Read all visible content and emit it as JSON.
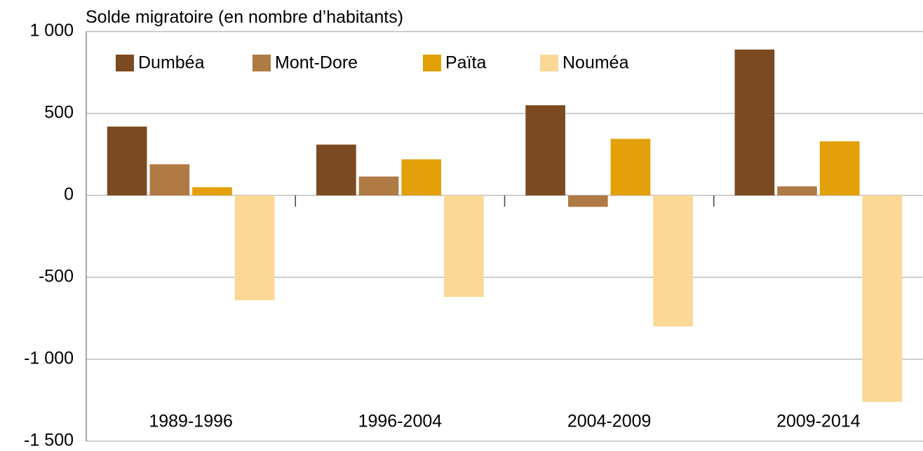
{
  "chart_data": {
    "type": "bar",
    "title": "Solde migratoire (en nombre d’habitants)",
    "categories": [
      "1989-1996",
      "1996-2004",
      "2004-2009",
      "2009-2014"
    ],
    "series": [
      {
        "name": "Dumbéa",
        "color": "#7b4a21",
        "values": [
          420,
          310,
          550,
          890
        ]
      },
      {
        "name": "Mont-Dore",
        "color": "#b07a45",
        "values": [
          190,
          115,
          -70,
          55
        ]
      },
      {
        "name": "Païta",
        "color": "#e3a008",
        "values": [
          50,
          220,
          345,
          330
        ]
      },
      {
        "name": "Nouméa",
        "color": "#fbd896",
        "values": [
          -640,
          -620,
          -800,
          -1260
        ]
      }
    ],
    "ylim": [
      -1500,
      1000
    ],
    "yticks": [
      {
        "value": -1500,
        "label": "-1 500"
      },
      {
        "value": -1000,
        "label": "-1 000"
      },
      -500,
      0,
      500,
      {
        "value": 1000,
        "label": "1 000"
      }
    ],
    "grid": true
  }
}
